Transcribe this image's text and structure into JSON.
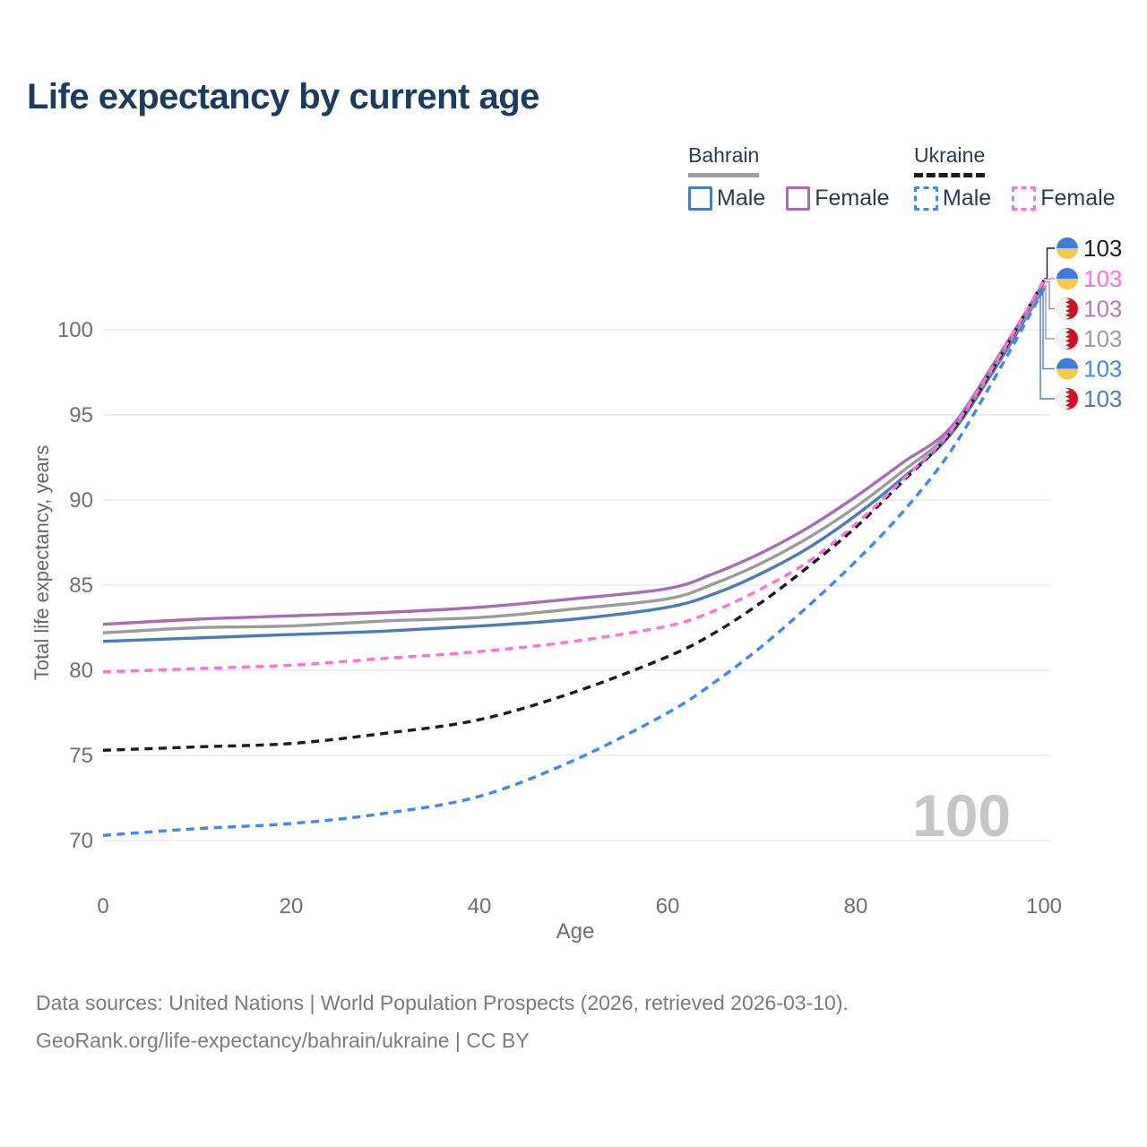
{
  "title": "Life expectancy by current age",
  "legend": {
    "groups": [
      {
        "country": "Bahrain",
        "line_style": "solid",
        "underline_color": "#9e9e9e",
        "items": [
          {
            "label": "Male",
            "color": "#4a7cbc",
            "dashed": false
          },
          {
            "label": "Female",
            "color": "#a76cb4",
            "dashed": false
          }
        ]
      },
      {
        "country": "Ukraine",
        "line_style": "dashed",
        "underline_color": "#1c1c1c",
        "items": [
          {
            "label": "Male",
            "color": "#4285f4",
            "dashed": true
          },
          {
            "label": "Female",
            "color": "#ff70dd",
            "dashed": true
          }
        ]
      }
    ]
  },
  "hover_age": "100",
  "chart_data": {
    "type": "line",
    "title": "Life expectancy by current age",
    "xlabel": "Age",
    "ylabel": "Total life expectancy, years",
    "xlim": [
      0,
      100
    ],
    "ylim": [
      68.5,
      104
    ],
    "x_ticks": [
      0,
      20,
      40,
      60,
      80,
      100
    ],
    "y_ticks": [
      70,
      75,
      80,
      85,
      90,
      95,
      100
    ],
    "grid": "horizontal-only",
    "legend_position": "top-right",
    "x": [
      0,
      10,
      20,
      30,
      40,
      50,
      60,
      65,
      70,
      75,
      80,
      85,
      90,
      95,
      100
    ],
    "series": [
      {
        "id": "bahrain_male",
        "name": "Bahrain Male",
        "country": "Bahrain",
        "color": "#4a7cbc",
        "dashed": false,
        "values": [
          81.7,
          81.9,
          82.1,
          82.3,
          82.6,
          83.0,
          83.7,
          84.5,
          85.7,
          87.2,
          89.1,
          91.3,
          93.8,
          97.9,
          102.5
        ]
      },
      {
        "id": "bahrain_all",
        "name": "Bahrain Total",
        "country": "Bahrain",
        "color": "#9b9b9b",
        "dashed": false,
        "values": [
          82.2,
          82.5,
          82.6,
          82.9,
          83.1,
          83.6,
          84.2,
          85.1,
          86.3,
          87.8,
          89.6,
          91.7,
          94.0,
          98.1,
          102.6
        ]
      },
      {
        "id": "bahrain_female",
        "name": "Bahrain Female",
        "country": "Bahrain",
        "color": "#a76cb4",
        "dashed": false,
        "values": [
          82.7,
          83.0,
          83.2,
          83.4,
          83.7,
          84.2,
          84.8,
          85.7,
          86.9,
          88.4,
          90.2,
          92.2,
          94.2,
          98.3,
          102.8
        ]
      },
      {
        "id": "ukraine_male",
        "name": "Ukraine Male",
        "country": "Ukraine",
        "color": "#4285f4",
        "dashed": true,
        "values": [
          70.3,
          70.7,
          71.0,
          71.6,
          72.6,
          74.7,
          77.5,
          79.3,
          81.4,
          83.8,
          86.4,
          89.3,
          92.8,
          97.4,
          102.4
        ]
      },
      {
        "id": "ukraine_all",
        "name": "Ukraine Total",
        "country": "Ukraine",
        "color": "#1c1c1c",
        "dashed": true,
        "values": [
          75.3,
          75.5,
          75.7,
          76.3,
          77.1,
          78.7,
          80.8,
          82.2,
          84.0,
          86.1,
          88.4,
          91.1,
          93.9,
          98.1,
          102.9
        ]
      },
      {
        "id": "ukraine_female",
        "name": "Ukraine Female",
        "country": "Ukraine",
        "color": "#ff70dd",
        "dashed": true,
        "values": [
          79.9,
          80.1,
          80.3,
          80.7,
          81.1,
          81.7,
          82.6,
          83.5,
          84.8,
          86.4,
          88.6,
          91.2,
          94.0,
          98.2,
          102.9
        ]
      }
    ],
    "end_labels": [
      {
        "series": "ukraine_all",
        "flag": "ukraine",
        "value": "103",
        "color": "#1c1c1c"
      },
      {
        "series": "ukraine_female",
        "flag": "ukraine",
        "value": "103",
        "color": "#ff70dd"
      },
      {
        "series": "bahrain_female",
        "flag": "bahrain",
        "value": "103",
        "color": "#b07ab8"
      },
      {
        "series": "bahrain_all",
        "flag": "bahrain",
        "value": "103",
        "color": "#9b9b9b"
      },
      {
        "series": "ukraine_male",
        "flag": "ukraine",
        "value": "103",
        "color": "#4285f4"
      },
      {
        "series": "bahrain_male",
        "flag": "bahrain",
        "value": "103",
        "color": "#4a7cbc"
      }
    ],
    "flag_colors": {
      "ukraine_blue": "#3d7edd",
      "ukraine_yellow": "#f7c94b",
      "bahrain_red": "#ce1126",
      "bahrain_white": "#f2f2f2"
    },
    "grid_color": "#e8e8e8",
    "tick_color": "#6f6f6f"
  },
  "footer": {
    "line1": "Data sources: United Nations | World Population Prospects (2026, retrieved 2026-03-10).",
    "line2": "GeoRank.org/life-expectancy/bahrain/ukraine | CC BY"
  }
}
